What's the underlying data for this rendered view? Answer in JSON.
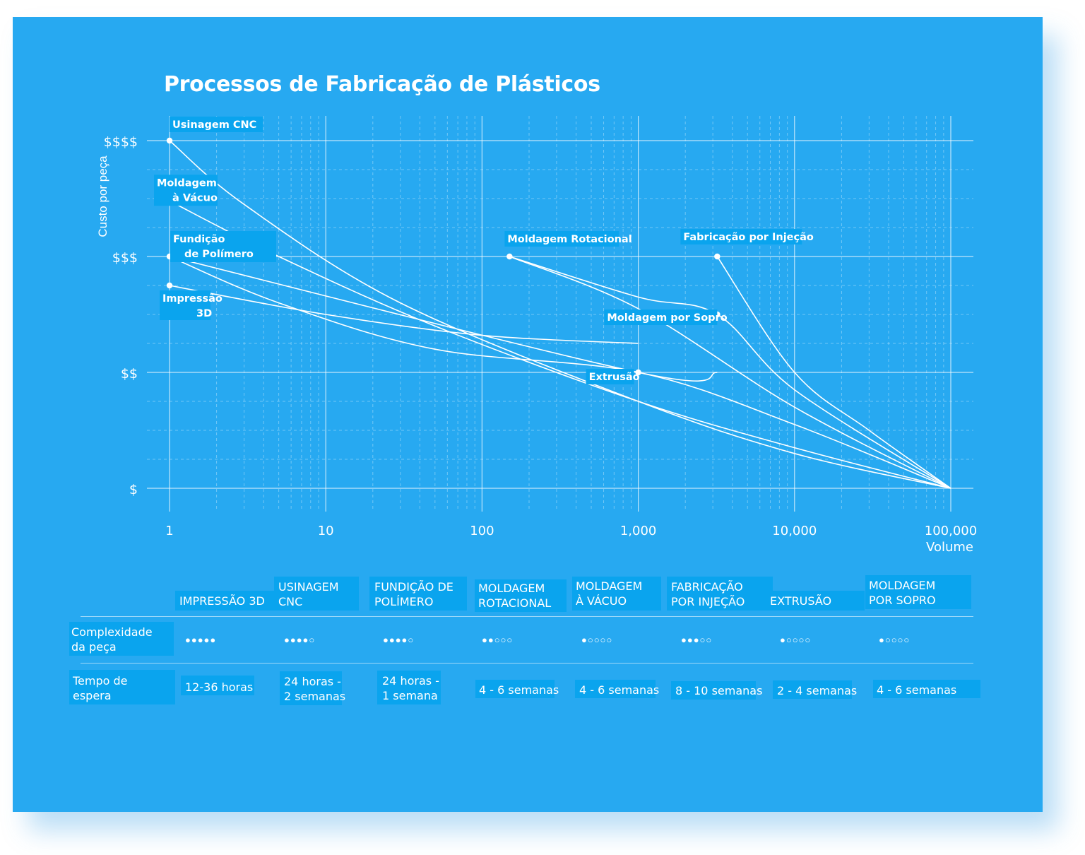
{
  "colors": {
    "card_bg": "#27a9f1",
    "label_bg": "#0aa4ee",
    "line": "#ffffff"
  },
  "chart_data": {
    "type": "line",
    "title": "Processos de Fabricação de Plásticos",
    "ylabel": "Custo por peça",
    "xlabel": "Volume",
    "x_scale": "log",
    "x_ticks": [
      {
        "value": 1,
        "label": "1"
      },
      {
        "value": 10,
        "label": "10"
      },
      {
        "value": 100,
        "label": "100"
      },
      {
        "value": 1000,
        "label": "1,000"
      },
      {
        "value": 10000,
        "label": "10,000"
      },
      {
        "value": 100000,
        "label": "100,000"
      }
    ],
    "xlim": [
      1,
      100000
    ],
    "y_ticks": [
      {
        "value": 1,
        "label": "$"
      },
      {
        "value": 2,
        "label": "$$"
      },
      {
        "value": 3,
        "label": "$$$"
      },
      {
        "value": 4,
        "label": "$$$$"
      }
    ],
    "ylim": [
      1,
      4
    ],
    "grid": true,
    "series": [
      {
        "name": "Usinagem CNC",
        "label_lines": [
          "Usinagem CNC"
        ],
        "points": [
          [
            1,
            4.0
          ],
          [
            3,
            3.45
          ],
          [
            30,
            2.6
          ],
          [
            1000,
            1.75
          ],
          [
            10000,
            1.3
          ],
          [
            100000,
            1.0
          ]
        ]
      },
      {
        "name": "Moldagem à Vácuo",
        "label_lines": [
          "Moldagem",
          "à Vácuo"
        ],
        "points": [
          [
            1,
            3.48
          ],
          [
            5,
            3.0
          ],
          [
            50,
            2.4
          ],
          [
            1000,
            1.75
          ],
          [
            10000,
            1.35
          ],
          [
            100000,
            1.0
          ]
        ]
      },
      {
        "name": "Fundição de Polímero",
        "label_lines": [
          "Fundição",
          "de Polímero"
        ],
        "points": [
          [
            1,
            3.0
          ],
          [
            5,
            2.6
          ],
          [
            50,
            2.2
          ],
          [
            1000,
            2.0
          ],
          [
            10000,
            1.55
          ],
          [
            100000,
            1.0
          ]
        ]
      },
      {
        "name": "Impressão 3D",
        "label_lines": [
          "Impressão",
          "3D"
        ],
        "points": [
          [
            1,
            2.75
          ],
          [
            10,
            2.5
          ],
          [
            100,
            2.32
          ],
          [
            1000,
            2.25
          ]
        ]
      },
      {
        "name": "Moldagem Rotacional",
        "label_lines": [
          "Moldagem Rotacional"
        ],
        "points": [
          [
            150,
            3.0
          ],
          [
            1000,
            2.55
          ],
          [
            10000,
            1.7
          ],
          [
            100000,
            1.0
          ]
        ]
      },
      {
        "name": "Fabricação por Injeção",
        "label_lines": [
          "Fabricação por Injeção"
        ],
        "points": [
          [
            3200,
            3.0
          ],
          [
            10000,
            2.0
          ],
          [
            30000,
            1.5
          ],
          [
            100000,
            1.0
          ]
        ]
      },
      {
        "name": "Moldagem por Sopro",
        "label_lines": [
          "Moldagem por Sopro"
        ],
        "points": [
          [
            150,
            3.0
          ],
          [
            1000,
            2.65
          ],
          [
            3200,
            2.5
          ],
          [
            10000,
            1.85
          ],
          [
            100000,
            1.0
          ]
        ]
      },
      {
        "name": "Extrusão",
        "label_lines": [
          "Extrusão"
        ],
        "points": [
          [
            1,
            3.0
          ],
          [
            1000,
            2.0
          ],
          [
            3200,
            2.0
          ]
        ]
      }
    ]
  },
  "table": {
    "columns": [
      "IMPRESSÃO 3D",
      "USINAGEM\nCNC",
      "FUNDIÇÃO DE\nPOLÍMERO",
      "MOLDAGEM\nROTACIONAL",
      "MOLDAGEM\nÀ VÁCUO",
      "FABRICAÇÃO\nPOR INJEÇÃO",
      "EXTRUSÃO",
      "MOLDAGEM\nPOR SOPRO"
    ],
    "rows": [
      {
        "label": "Complexidade\nda peça",
        "ratings": [
          5,
          4,
          4,
          2,
          1,
          3,
          1,
          1
        ],
        "max": 5
      },
      {
        "label": "Tempo de\nespera",
        "values": [
          "12-36 horas",
          "24 horas -\n2 semanas",
          "24 horas -\n1 semana",
          "4 - 6 semanas",
          "4 - 6 semanas",
          "8 - 10 semanas",
          "2 - 4 semanas",
          "4 - 6 semanas"
        ]
      }
    ]
  }
}
